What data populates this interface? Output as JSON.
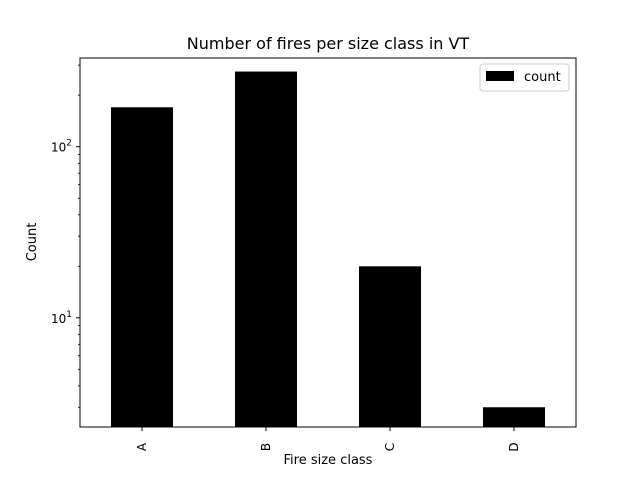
{
  "chart_data": {
    "type": "bar",
    "title": "Number of fires per size class in VT",
    "xlabel": "Fire size class",
    "ylabel": "Count",
    "categories": [
      "A",
      "B",
      "C",
      "D"
    ],
    "series": [
      {
        "name": "count",
        "values": [
          170,
          275,
          20,
          3
        ],
        "color": "#000000"
      }
    ],
    "yscale": "log",
    "ylim": [
      2.3,
      330
    ],
    "major_ticks": [
      {
        "value": 10,
        "base": "10",
        "exp": "1"
      },
      {
        "value": 100,
        "base": "10",
        "exp": "2"
      }
    ],
    "minor_ticks": [
      3,
      4,
      5,
      6,
      7,
      8,
      9,
      20,
      30,
      40,
      50,
      60,
      70,
      80,
      90,
      200,
      300
    ],
    "grid": false,
    "legend": "top-right"
  }
}
